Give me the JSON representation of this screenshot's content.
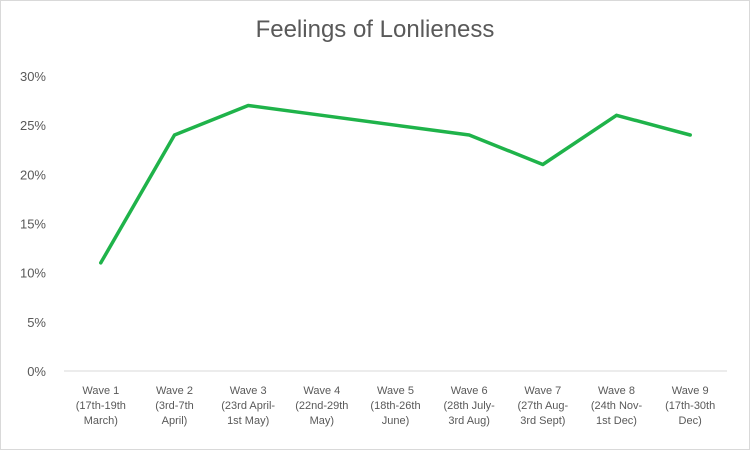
{
  "chart_data": {
    "type": "line",
    "title": "Feelings of Lonlieness",
    "xlabel": "",
    "ylabel": "",
    "categories": [
      [
        "Wave 1",
        "(17th-19th",
        "March)"
      ],
      [
        "Wave 2",
        "(3rd-7th",
        "April)"
      ],
      [
        "Wave 3",
        "(23rd April-",
        "1st May)"
      ],
      [
        "Wave 4",
        "(22nd-29th",
        "May)"
      ],
      [
        "Wave 5",
        "(18th-26th",
        "June)"
      ],
      [
        "Wave 6",
        "(28th July-",
        "3rd Aug)"
      ],
      [
        "Wave 7",
        "(27th Aug-",
        "3rd Sept)"
      ],
      [
        "Wave 8",
        "(24th Nov-",
        "1st Dec)"
      ],
      [
        "Wave 9",
        "(17th-30th",
        "Dec)"
      ]
    ],
    "series": [
      {
        "values": [
          0.11,
          0.24,
          0.27,
          0.26,
          0.25,
          0.24,
          0.21,
          0.26,
          0.24
        ],
        "color": "#1fb34a"
      }
    ],
    "ylim": [
      0,
      0.3
    ],
    "yticks": [
      "0%",
      "5%",
      "10%",
      "15%",
      "20%",
      "25%",
      "30%"
    ],
    "grid": false,
    "legend": "none"
  }
}
